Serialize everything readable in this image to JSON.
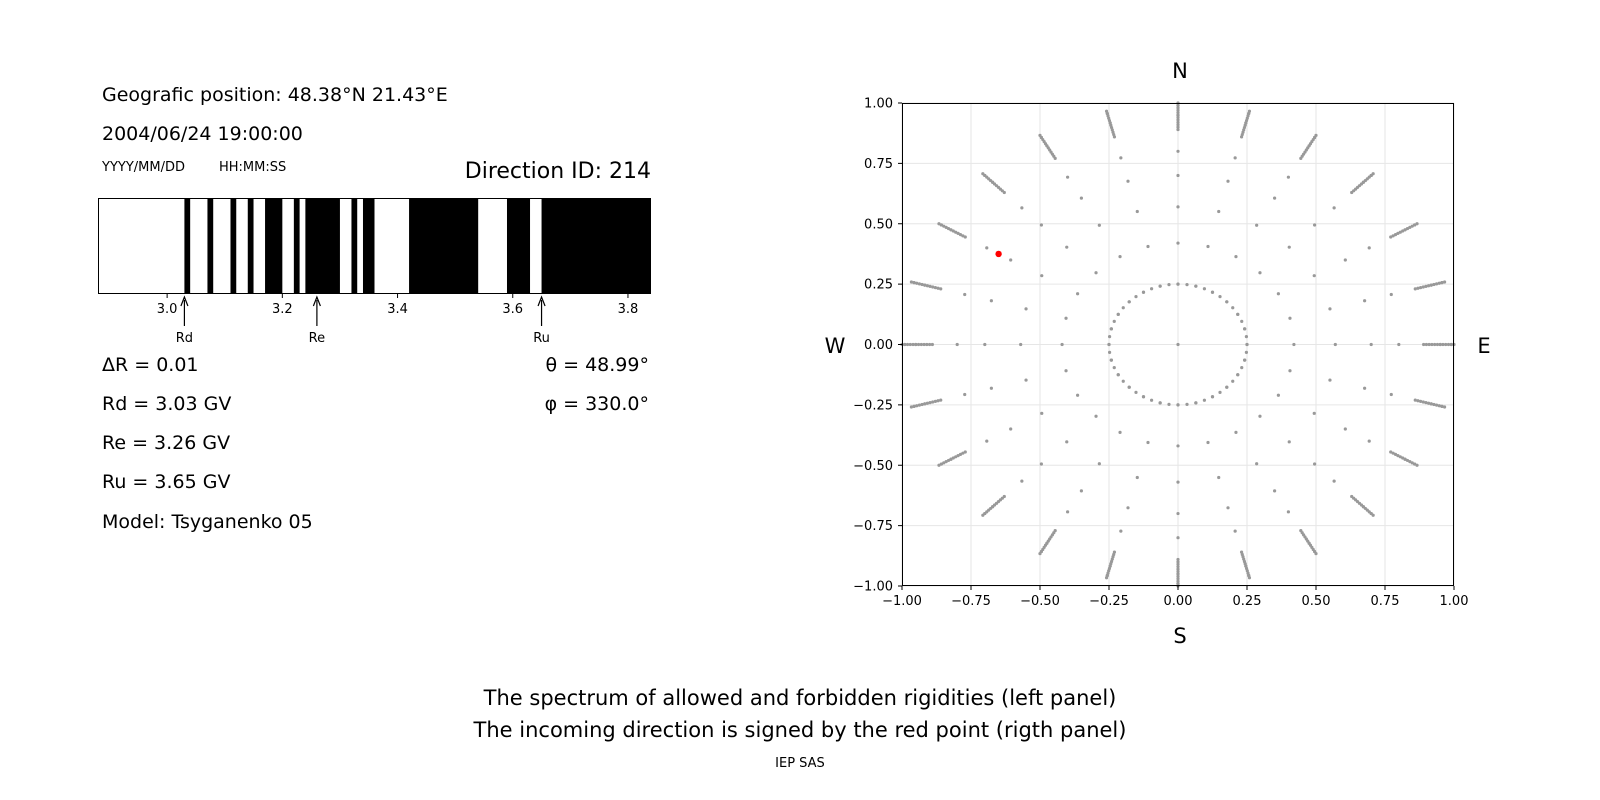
{
  "info": {
    "position": "Geografic position: 48.38°N 21.43°E",
    "datetime": "2004/06/24 19:00:00",
    "date_format": "YYYY/MM/DD",
    "time_format": "HH:MM:SS",
    "direction_id": "Direction ID: 214",
    "delta_r": "ΔR = 0.01",
    "rd": "Rd = 3.03 GV",
    "re": "Re = 3.26 GV",
    "ru": "Ru = 3.65 GV",
    "model": "Model: Tsyganenko 05",
    "theta": "θ = 48.99°",
    "phi": "φ = 330.0°"
  },
  "captions": {
    "line1": "The spectrum of allowed and forbidden rigidities (left panel)",
    "line2": "The incoming direction is signed by the red point (rigth panel)",
    "credit": "IEP SAS"
  },
  "chart_data": [
    {
      "type": "bar",
      "description": "rigidity spectrum barcode (black = forbidden, white = allowed)",
      "xlim": [
        2.88,
        3.84
      ],
      "xticks": [
        3.0,
        3.2,
        3.4,
        3.6,
        3.8
      ],
      "xtick_labels": [
        "3.0",
        "3.2",
        "3.4",
        "3.6",
        "3.8"
      ],
      "forbidden_intervals": [
        [
          3.03,
          3.04
        ],
        [
          3.07,
          3.08
        ],
        [
          3.11,
          3.12
        ],
        [
          3.14,
          3.15
        ],
        [
          3.17,
          3.2
        ],
        [
          3.22,
          3.23
        ],
        [
          3.24,
          3.3
        ],
        [
          3.32,
          3.33
        ],
        [
          3.34,
          3.36
        ],
        [
          3.42,
          3.54
        ],
        [
          3.59,
          3.63
        ],
        [
          3.65,
          3.84
        ]
      ],
      "markers": [
        {
          "label": "Rd",
          "value": 3.03
        },
        {
          "label": "Re",
          "value": 3.26
        },
        {
          "label": "Ru",
          "value": 3.65
        }
      ]
    },
    {
      "type": "scatter",
      "description": "asymptotic directions grid",
      "xlim": [
        -1.0,
        1.0
      ],
      "ylim": [
        -1.0,
        1.0
      ],
      "xticks": [
        -1.0,
        -0.75,
        -0.5,
        -0.25,
        0.0,
        0.25,
        0.5,
        0.75,
        1.0
      ],
      "yticks": [
        -1.0,
        -0.75,
        -0.5,
        -0.25,
        0.0,
        0.25,
        0.5,
        0.75,
        1.0
      ],
      "xtick_labels": [
        "−1.00",
        "−0.75",
        "−0.50",
        "−0.25",
        "0.00",
        "0.25",
        "0.50",
        "0.75",
        "1.00"
      ],
      "ytick_labels": [
        "−1.00",
        "−0.75",
        "−0.50",
        "−0.25",
        "0.00",
        "0.25",
        "0.50",
        "0.75",
        "1.00"
      ],
      "grid": true,
      "compass": {
        "N": "N",
        "S": "S",
        "E": "E",
        "W": "W"
      },
      "grid_rings_radius": [
        0.25,
        0.42,
        0.57,
        0.7,
        0.8,
        0.89,
        0.95,
        0.99
      ],
      "grid_spokes_deg_step": 15,
      "grid_point_color": "#999999",
      "highlight": {
        "x": -0.65,
        "y": 0.375,
        "color": "#ff0000"
      }
    }
  ]
}
